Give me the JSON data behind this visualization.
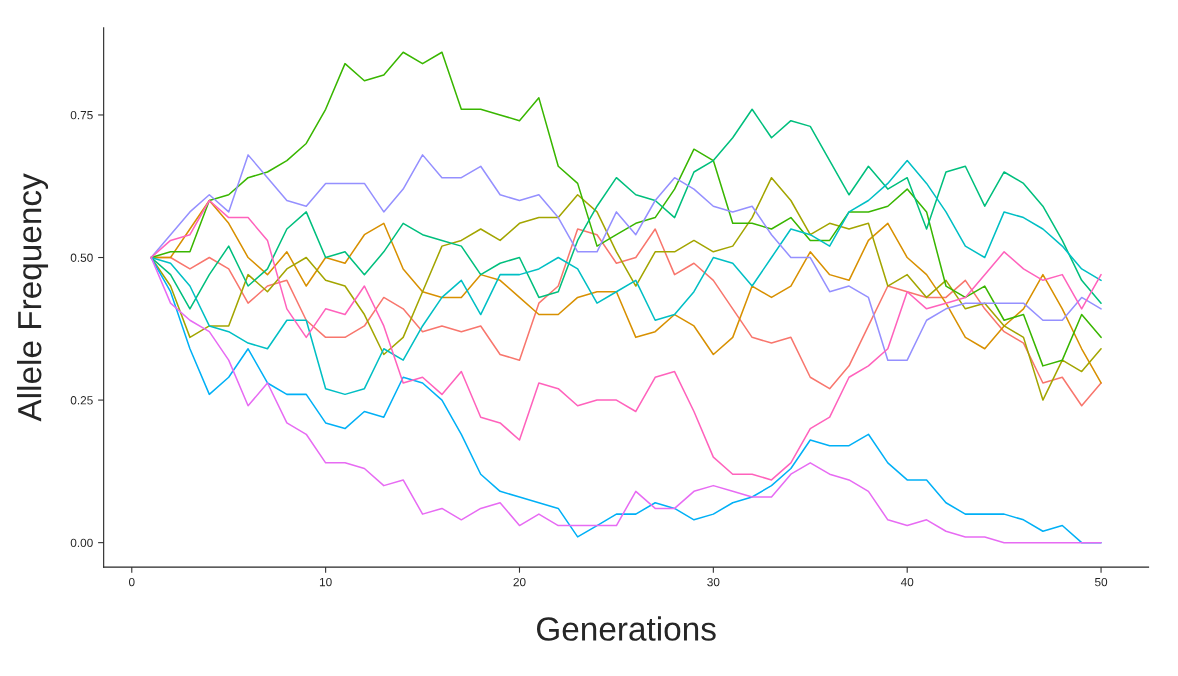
{
  "chart_data": {
    "type": "line",
    "xlabel": "Generations",
    "ylabel": "Allele Frequency",
    "x": [
      1,
      2,
      3,
      4,
      5,
      6,
      7,
      8,
      9,
      10,
      11,
      12,
      13,
      14,
      15,
      16,
      17,
      18,
      19,
      20,
      21,
      22,
      23,
      24,
      25,
      26,
      27,
      28,
      29,
      30,
      31,
      32,
      33,
      34,
      35,
      36,
      37,
      38,
      39,
      40,
      41,
      42,
      43,
      44,
      45,
      46,
      47,
      48,
      49,
      50
    ],
    "xlim": [
      -1.45,
      52.45
    ],
    "xticks": [
      0,
      10,
      20,
      30,
      40,
      50
    ],
    "ylim": [
      -0.043,
      0.903
    ],
    "yticks": [
      {
        "value": 0,
        "label": "0.00"
      },
      {
        "value": 0.25,
        "label": "0.25"
      },
      {
        "value": 0.5,
        "label": "0.50"
      },
      {
        "value": 0.75,
        "label": "0.75"
      }
    ],
    "grid": false,
    "marker": "none",
    "line_style": "solid",
    "series": [
      {
        "color": "#F8766D",
        "values": [
          0.5,
          0.5,
          0.48,
          0.5,
          0.48,
          0.42,
          0.45,
          0.46,
          0.39,
          0.36,
          0.36,
          0.38,
          0.43,
          0.41,
          0.37,
          0.38,
          0.37,
          0.38,
          0.33,
          0.32,
          0.42,
          0.45,
          0.55,
          0.54,
          0.49,
          0.5,
          0.55,
          0.47,
          0.49,
          0.46,
          0.41,
          0.36,
          0.35,
          0.36,
          0.29,
          0.27,
          0.31,
          0.38,
          0.45,
          0.44,
          0.43,
          0.43,
          0.46,
          0.41,
          0.37,
          0.35,
          0.28,
          0.29,
          0.24,
          0.28
        ]
      },
      {
        "color": "#D89000",
        "values": [
          0.5,
          0.5,
          0.55,
          0.6,
          0.56,
          0.5,
          0.47,
          0.51,
          0.45,
          0.5,
          0.49,
          0.54,
          0.56,
          0.48,
          0.44,
          0.43,
          0.43,
          0.47,
          0.46,
          0.43,
          0.4,
          0.4,
          0.43,
          0.44,
          0.44,
          0.36,
          0.37,
          0.4,
          0.38,
          0.33,
          0.36,
          0.45,
          0.43,
          0.45,
          0.51,
          0.47,
          0.46,
          0.53,
          0.56,
          0.5,
          0.47,
          0.42,
          0.36,
          0.34,
          0.38,
          0.41,
          0.47,
          0.41,
          0.34,
          0.28
        ]
      },
      {
        "color": "#A3A500",
        "values": [
          0.5,
          0.45,
          0.36,
          0.38,
          0.38,
          0.47,
          0.44,
          0.48,
          0.5,
          0.46,
          0.45,
          0.4,
          0.33,
          0.36,
          0.44,
          0.52,
          0.53,
          0.55,
          0.53,
          0.56,
          0.57,
          0.57,
          0.61,
          0.58,
          0.51,
          0.45,
          0.51,
          0.51,
          0.53,
          0.51,
          0.52,
          0.57,
          0.64,
          0.6,
          0.54,
          0.56,
          0.55,
          0.56,
          0.45,
          0.47,
          0.43,
          0.46,
          0.41,
          0.42,
          0.38,
          0.36,
          0.25,
          0.32,
          0.3,
          0.34
        ]
      },
      {
        "color": "#39B600",
        "values": [
          0.5,
          0.51,
          0.51,
          0.6,
          0.61,
          0.64,
          0.65,
          0.67,
          0.7,
          0.76,
          0.84,
          0.81,
          0.82,
          0.86,
          0.84,
          0.86,
          0.76,
          0.76,
          0.75,
          0.74,
          0.78,
          0.66,
          0.63,
          0.52,
          0.54,
          0.56,
          0.57,
          0.62,
          0.69,
          0.67,
          0.56,
          0.56,
          0.55,
          0.57,
          0.53,
          0.53,
          0.58,
          0.58,
          0.59,
          0.62,
          0.58,
          0.45,
          0.43,
          0.45,
          0.39,
          0.4,
          0.31,
          0.32,
          0.4,
          0.36
        ]
      },
      {
        "color": "#00BF7D",
        "values": [
          0.5,
          0.47,
          0.41,
          0.47,
          0.52,
          0.45,
          0.48,
          0.55,
          0.58,
          0.5,
          0.51,
          0.47,
          0.51,
          0.56,
          0.54,
          0.53,
          0.52,
          0.47,
          0.49,
          0.5,
          0.43,
          0.44,
          0.53,
          0.59,
          0.64,
          0.61,
          0.6,
          0.57,
          0.65,
          0.67,
          0.71,
          0.76,
          0.71,
          0.74,
          0.73,
          0.67,
          0.61,
          0.66,
          0.62,
          0.64,
          0.55,
          0.65,
          0.66,
          0.59,
          0.65,
          0.63,
          0.59,
          0.53,
          0.46,
          0.42
        ]
      },
      {
        "color": "#00BFC4",
        "values": [
          0.5,
          0.49,
          0.45,
          0.38,
          0.37,
          0.35,
          0.34,
          0.39,
          0.39,
          0.27,
          0.26,
          0.27,
          0.34,
          0.32,
          0.38,
          0.43,
          0.46,
          0.4,
          0.47,
          0.47,
          0.48,
          0.5,
          0.48,
          0.42,
          0.44,
          0.46,
          0.39,
          0.4,
          0.44,
          0.5,
          0.49,
          0.45,
          0.5,
          0.55,
          0.54,
          0.52,
          0.58,
          0.6,
          0.63,
          0.67,
          0.63,
          0.58,
          0.52,
          0.5,
          0.58,
          0.57,
          0.55,
          0.52,
          0.48,
          0.46
        ]
      },
      {
        "color": "#00B0F6",
        "values": [
          0.5,
          0.44,
          0.34,
          0.26,
          0.29,
          0.34,
          0.28,
          0.26,
          0.26,
          0.21,
          0.2,
          0.23,
          0.22,
          0.29,
          0.28,
          0.25,
          0.19,
          0.12,
          0.09,
          0.08,
          0.07,
          0.06,
          0.01,
          0.03,
          0.05,
          0.05,
          0.07,
          0.06,
          0.04,
          0.05,
          0.07,
          0.08,
          0.1,
          0.13,
          0.18,
          0.17,
          0.17,
          0.19,
          0.14,
          0.11,
          0.11,
          0.07,
          0.05,
          0.05,
          0.05,
          0.04,
          0.02,
          0.03,
          0.0,
          0.0
        ]
      },
      {
        "color": "#9590FF",
        "values": [
          0.5,
          0.54,
          0.58,
          0.61,
          0.58,
          0.68,
          0.64,
          0.6,
          0.59,
          0.63,
          0.63,
          0.63,
          0.58,
          0.62,
          0.68,
          0.64,
          0.64,
          0.66,
          0.61,
          0.6,
          0.61,
          0.57,
          0.51,
          0.51,
          0.58,
          0.54,
          0.6,
          0.64,
          0.62,
          0.59,
          0.58,
          0.59,
          0.54,
          0.5,
          0.5,
          0.44,
          0.45,
          0.43,
          0.32,
          0.32,
          0.39,
          0.41,
          0.42,
          0.42,
          0.42,
          0.42,
          0.39,
          0.39,
          0.43,
          0.41
        ]
      },
      {
        "color": "#E76BF3",
        "values": [
          0.5,
          0.42,
          0.39,
          0.37,
          0.32,
          0.24,
          0.28,
          0.21,
          0.19,
          0.14,
          0.14,
          0.13,
          0.1,
          0.11,
          0.05,
          0.06,
          0.04,
          0.06,
          0.07,
          0.03,
          0.05,
          0.03,
          0.03,
          0.03,
          0.03,
          0.09,
          0.06,
          0.06,
          0.09,
          0.1,
          0.09,
          0.08,
          0.08,
          0.12,
          0.14,
          0.12,
          0.11,
          0.09,
          0.04,
          0.03,
          0.04,
          0.02,
          0.01,
          0.01,
          0.0,
          0.0,
          0.0,
          0.0,
          0.0,
          0.0
        ]
      },
      {
        "color": "#FF62BC",
        "values": [
          0.5,
          0.53,
          0.54,
          0.6,
          0.57,
          0.57,
          0.53,
          0.41,
          0.36,
          0.41,
          0.4,
          0.45,
          0.38,
          0.28,
          0.29,
          0.26,
          0.3,
          0.22,
          0.21,
          0.18,
          0.28,
          0.27,
          0.24,
          0.25,
          0.25,
          0.23,
          0.29,
          0.3,
          0.23,
          0.15,
          0.12,
          0.12,
          0.11,
          0.14,
          0.2,
          0.22,
          0.29,
          0.31,
          0.34,
          0.44,
          0.41,
          0.42,
          0.43,
          0.47,
          0.51,
          0.48,
          0.46,
          0.47,
          0.41,
          0.47
        ]
      }
    ]
  }
}
